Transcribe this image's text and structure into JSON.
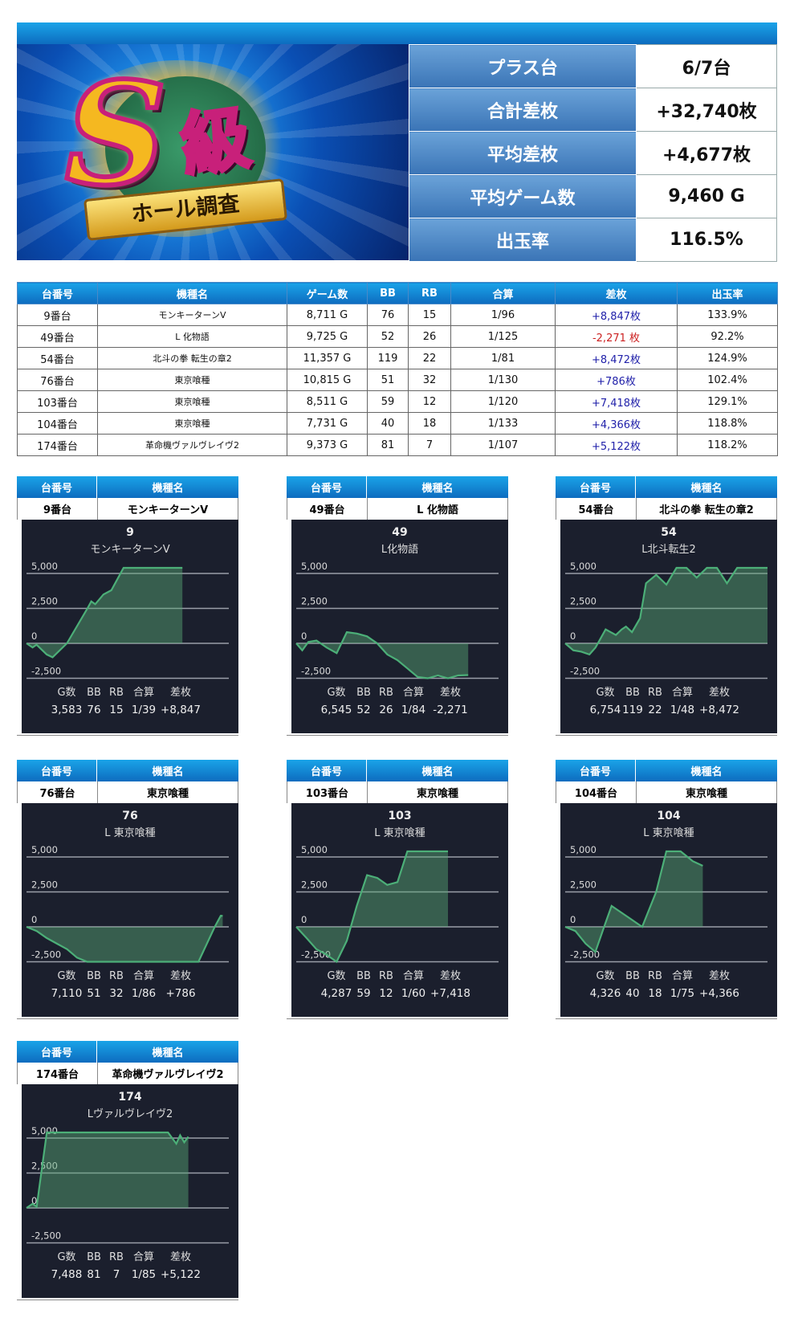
{
  "banner": {
    "logo_text": "S級",
    "ribbon_text": "ホール調査"
  },
  "summary": [
    {
      "label": "プラス台",
      "value": "6/7台"
    },
    {
      "label": "合計差枚",
      "value": "+32,740枚"
    },
    {
      "label": "平均差枚",
      "value": "+4,677枚"
    },
    {
      "label": "平均ゲーム数",
      "value": "9,460 G"
    },
    {
      "label": "出玉率",
      "value": "116.5%"
    }
  ],
  "table": {
    "headers": [
      "台番号",
      "機種名",
      "ゲーム数",
      "BB",
      "RB",
      "合算",
      "差枚",
      "出玉率"
    ],
    "rows": [
      [
        "9番台",
        "モンキーターンV",
        "8,711 G",
        "76",
        "15",
        "1/96",
        "+8,847枚",
        "133.9%"
      ],
      [
        "49番台",
        "L 化物語",
        "9,725 G",
        "52",
        "26",
        "1/125",
        "-2,271 枚",
        "92.2%"
      ],
      [
        "54番台",
        "北斗の拳 転生の章2",
        "11,357 G",
        "119",
        "22",
        "1/81",
        "+8,472枚",
        "124.9%"
      ],
      [
        "76番台",
        "東京喰種",
        "10,815 G",
        "51",
        "32",
        "1/130",
        "+786枚",
        "102.4%"
      ],
      [
        "103番台",
        "東京喰種",
        "8,511 G",
        "59",
        "12",
        "1/120",
        "+7,418枚",
        "129.1%"
      ],
      [
        "104番台",
        "東京喰種",
        "7,731 G",
        "40",
        "18",
        "1/133",
        "+4,366枚",
        "118.8%"
      ],
      [
        "174番台",
        "革命機ヴァルヴレイヴ2",
        "9,373 G",
        "81",
        "7",
        "1/107",
        "+5,122枚",
        "118.2%"
      ]
    ]
  },
  "colors": {
    "header_blue": "#1a9be0",
    "panel_bg": "#1b1f2d",
    "line_green": "#4caf78",
    "plus": "#2222aa",
    "minus": "#cc2222"
  },
  "card_headers": [
    "台番号",
    "機種名"
  ],
  "stat_labels": [
    "G数",
    "BB",
    "RB",
    "合算",
    "差枚"
  ],
  "chart_data": [
    {
      "type": "area",
      "card_no": "9番台",
      "card_name": "モンキーターンV",
      "title": "9",
      "subtitle": "モンキーターンV",
      "yticks": [
        "5,000",
        "2,500",
        "0",
        "-2,500"
      ],
      "ylim": [
        -2500,
        5400
      ],
      "xmax": 4650,
      "stats": [
        "3,583",
        "76",
        "15",
        "1/39",
        "+8,847"
      ],
      "points": [
        [
          0,
          0
        ],
        [
          140,
          -300
        ],
        [
          230,
          -100
        ],
        [
          465,
          -800
        ],
        [
          600,
          -1000
        ],
        [
          930,
          0
        ],
        [
          1400,
          2500
        ],
        [
          1490,
          3000
        ],
        [
          1580,
          2800
        ],
        [
          1770,
          3500
        ],
        [
          1950,
          3800
        ],
        [
          2230,
          5400
        ],
        [
          3583,
          5400
        ]
      ]
    },
    {
      "type": "area",
      "card_no": "49番台",
      "card_name": "L 化物語",
      "title": "49",
      "subtitle": "L化物語",
      "yticks": [
        "5,000",
        "2,500",
        "0",
        "-2,500"
      ],
      "ylim": [
        -2500,
        5400
      ],
      "xmax": 7700,
      "stats": [
        "6,545",
        "52",
        "26",
        "1/84",
        "-2,271"
      ],
      "points": [
        [
          0,
          0
        ],
        [
          230,
          -500
        ],
        [
          460,
          100
        ],
        [
          770,
          200
        ],
        [
          1155,
          -300
        ],
        [
          1540,
          -700
        ],
        [
          1925,
          800
        ],
        [
          2310,
          700
        ],
        [
          2695,
          500
        ],
        [
          3080,
          0
        ],
        [
          3465,
          -800
        ],
        [
          3850,
          -1200
        ],
        [
          4235,
          -1800
        ],
        [
          4620,
          -2400
        ],
        [
          5005,
          -2500
        ],
        [
          5390,
          -2300
        ],
        [
          5775,
          -2500
        ],
        [
          6160,
          -2300
        ],
        [
          6545,
          -2271
        ]
      ]
    },
    {
      "type": "area",
      "card_no": "54番台",
      "card_name": "北斗の拳 転生の章2",
      "title": "54",
      "subtitle": "L北斗転生2",
      "yticks": [
        "5,000",
        "2,500",
        "0",
        "-2,500"
      ],
      "ylim": [
        -2500,
        5400
      ],
      "xmax": 6754,
      "stats": [
        "6,754",
        "119",
        "22",
        "1/48",
        "+8,472"
      ],
      "points": [
        [
          0,
          0
        ],
        [
          270,
          -500
        ],
        [
          540,
          -600
        ],
        [
          810,
          -800
        ],
        [
          1013,
          -300
        ],
        [
          1350,
          1000
        ],
        [
          1690,
          600
        ],
        [
          1890,
          1000
        ],
        [
          2030,
          1200
        ],
        [
          2230,
          800
        ],
        [
          2500,
          1800
        ],
        [
          2700,
          4300
        ],
        [
          3040,
          4900
        ],
        [
          3380,
          4200
        ],
        [
          3715,
          5400
        ],
        [
          4050,
          5400
        ],
        [
          4390,
          4700
        ],
        [
          4730,
          5400
        ],
        [
          5065,
          5400
        ],
        [
          5400,
          4300
        ],
        [
          5740,
          5400
        ],
        [
          6754,
          5400
        ]
      ]
    },
    {
      "type": "area",
      "card_no": "76番台",
      "card_name": "東京喰種",
      "title": "76",
      "subtitle": "L 東京喰種",
      "yticks": [
        "5,000",
        "2,500",
        "0",
        "-2,500"
      ],
      "ylim": [
        -2500,
        5400
      ],
      "xmax": 7330,
      "stats": [
        "7,110",
        "51",
        "32",
        "1/86",
        "+786"
      ],
      "points": [
        [
          0,
          0
        ],
        [
          370,
          -300
        ],
        [
          730,
          -800
        ],
        [
          1100,
          -1200
        ],
        [
          1470,
          -1600
        ],
        [
          1830,
          -2200
        ],
        [
          2200,
          -2500
        ],
        [
          6230,
          -2500
        ],
        [
          6820,
          0
        ],
        [
          7040,
          800
        ],
        [
          7110,
          786
        ]
      ]
    },
    {
      "type": "area",
      "card_no": "103番台",
      "card_name": "東京喰種",
      "title": "103",
      "subtitle": "L 東京喰種",
      "yticks": [
        "5,000",
        "2,500",
        "0",
        "-2,500"
      ],
      "ylim": [
        -2500,
        5400
      ],
      "xmax": 5716,
      "stats": [
        "4,287",
        "59",
        "12",
        "1/60",
        "+7,418"
      ],
      "points": [
        [
          0,
          0
        ],
        [
          290,
          -800
        ],
        [
          570,
          -1600
        ],
        [
          860,
          -2000
        ],
        [
          1140,
          -2500
        ],
        [
          1430,
          -1000
        ],
        [
          1710,
          1500
        ],
        [
          2000,
          3700
        ],
        [
          2290,
          3500
        ],
        [
          2570,
          3000
        ],
        [
          2860,
          3200
        ],
        [
          3140,
          5400
        ],
        [
          4287,
          5400
        ]
      ]
    },
    {
      "type": "area",
      "card_no": "104番台",
      "card_name": "東京喰種",
      "title": "104",
      "subtitle": "L 東京喰種",
      "yticks": [
        "5,000",
        "2,500",
        "0",
        "-2,500"
      ],
      "ylim": [
        -2500,
        5400
      ],
      "xmax": 6360,
      "stats": [
        "4,326",
        "40",
        "18",
        "1/75",
        "+4,366"
      ],
      "points": [
        [
          0,
          0
        ],
        [
          320,
          -300
        ],
        [
          640,
          -1200
        ],
        [
          950,
          -1800
        ],
        [
          1270,
          300
        ],
        [
          1460,
          1500
        ],
        [
          1910,
          800
        ],
        [
          2420,
          0
        ],
        [
          2860,
          2500
        ],
        [
          3180,
          5400
        ],
        [
          3630,
          5400
        ],
        [
          4010,
          4700
        ],
        [
          4326,
          4366
        ]
      ]
    },
    {
      "type": "area",
      "card_no": "174番台",
      "card_name": "革命機ヴァルヴレイヴ2",
      "title": "174",
      "subtitle": "Lヴァルヴレイヴ2",
      "yticks": [
        "5,000",
        "2,500",
        "0",
        "-2,500"
      ],
      "ylim": [
        -2500,
        5400
      ],
      "xmax": 9360,
      "stats": [
        "7,488",
        "81",
        "7",
        "1/85",
        "+5,122"
      ],
      "points": [
        [
          0,
          0
        ],
        [
          280,
          300
        ],
        [
          470,
          100
        ],
        [
          940,
          5400
        ],
        [
          6550,
          5400
        ],
        [
          6930,
          4600
        ],
        [
          7110,
          5200
        ],
        [
          7300,
          4700
        ],
        [
          7488,
          5100
        ]
      ]
    }
  ]
}
